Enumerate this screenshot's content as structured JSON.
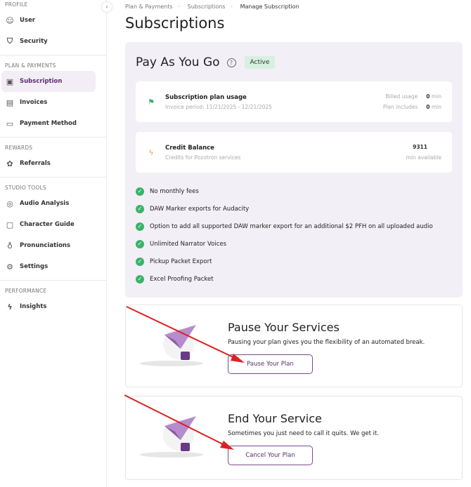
{
  "sidebar": {
    "sections": [
      {
        "title": "PROFILE",
        "items": [
          {
            "label": "User",
            "icon": "user-icon"
          },
          {
            "label": "Security",
            "icon": "shield-icon"
          }
        ]
      },
      {
        "title": "PLAN & PAYMENTS",
        "items": [
          {
            "label": "Subscription",
            "icon": "calendar-icon",
            "active": true
          },
          {
            "label": "Invoices",
            "icon": "receipt-icon"
          },
          {
            "label": "Payment Method",
            "icon": "credit-card-icon"
          }
        ]
      },
      {
        "title": "REWARDS",
        "items": [
          {
            "label": "Referrals",
            "icon": "gift-icon"
          }
        ]
      },
      {
        "title": "STUDIO TOOLS",
        "items": [
          {
            "label": "Audio Analysis",
            "icon": "waveform-icon"
          },
          {
            "label": "Character Guide",
            "icon": "clipboard-icon"
          },
          {
            "label": "Pronunciations",
            "icon": "microphone-icon"
          },
          {
            "label": "Settings",
            "icon": "gear-icon"
          }
        ]
      },
      {
        "title": "PERFORMANCE",
        "items": [
          {
            "label": "Insights",
            "icon": "lightning-icon"
          }
        ]
      }
    ]
  },
  "breadcrumb": [
    "Plan & Payments",
    "Subscriptions",
    "Manage Subscription"
  ],
  "page_title": "Subscriptions",
  "plan": {
    "name": "Pay As You Go",
    "status": "Active",
    "usage": {
      "title": "Subscription plan usage",
      "period": "Invoice period: 11/21/2025 - 12/21/2025",
      "billed_label": "Billed usage",
      "billed_value": "0",
      "plan_label": "Plan includes",
      "plan_value": "0",
      "unit": "min"
    },
    "credit": {
      "title": "Credit Balance",
      "subtitle": "Credits for Pozotron services",
      "value": "9311",
      "unit": "min available"
    },
    "features": [
      "No monthly fees",
      "DAW Marker exports for Audacity",
      "Option to add all supported DAW marker export for an additional $2 PFH on all uploaded audio",
      "Unlimited Narrator Voices",
      "Pickup Packet Export",
      "Excel Proofing Packet"
    ]
  },
  "pause": {
    "title": "Pause Your Services",
    "text": "Pausing your plan gives you the flexibility of an automated break.",
    "button": "Pause Your Plan"
  },
  "end": {
    "title": "End Your Service",
    "text": "Sometimes you just need to call it quits. We get it.",
    "button": "Cancel Your Plan"
  },
  "colors": {
    "accent": "#7c4a8e",
    "active_bg": "#f3edf6",
    "check": "#3bb36a",
    "annotation": "#e02020"
  }
}
